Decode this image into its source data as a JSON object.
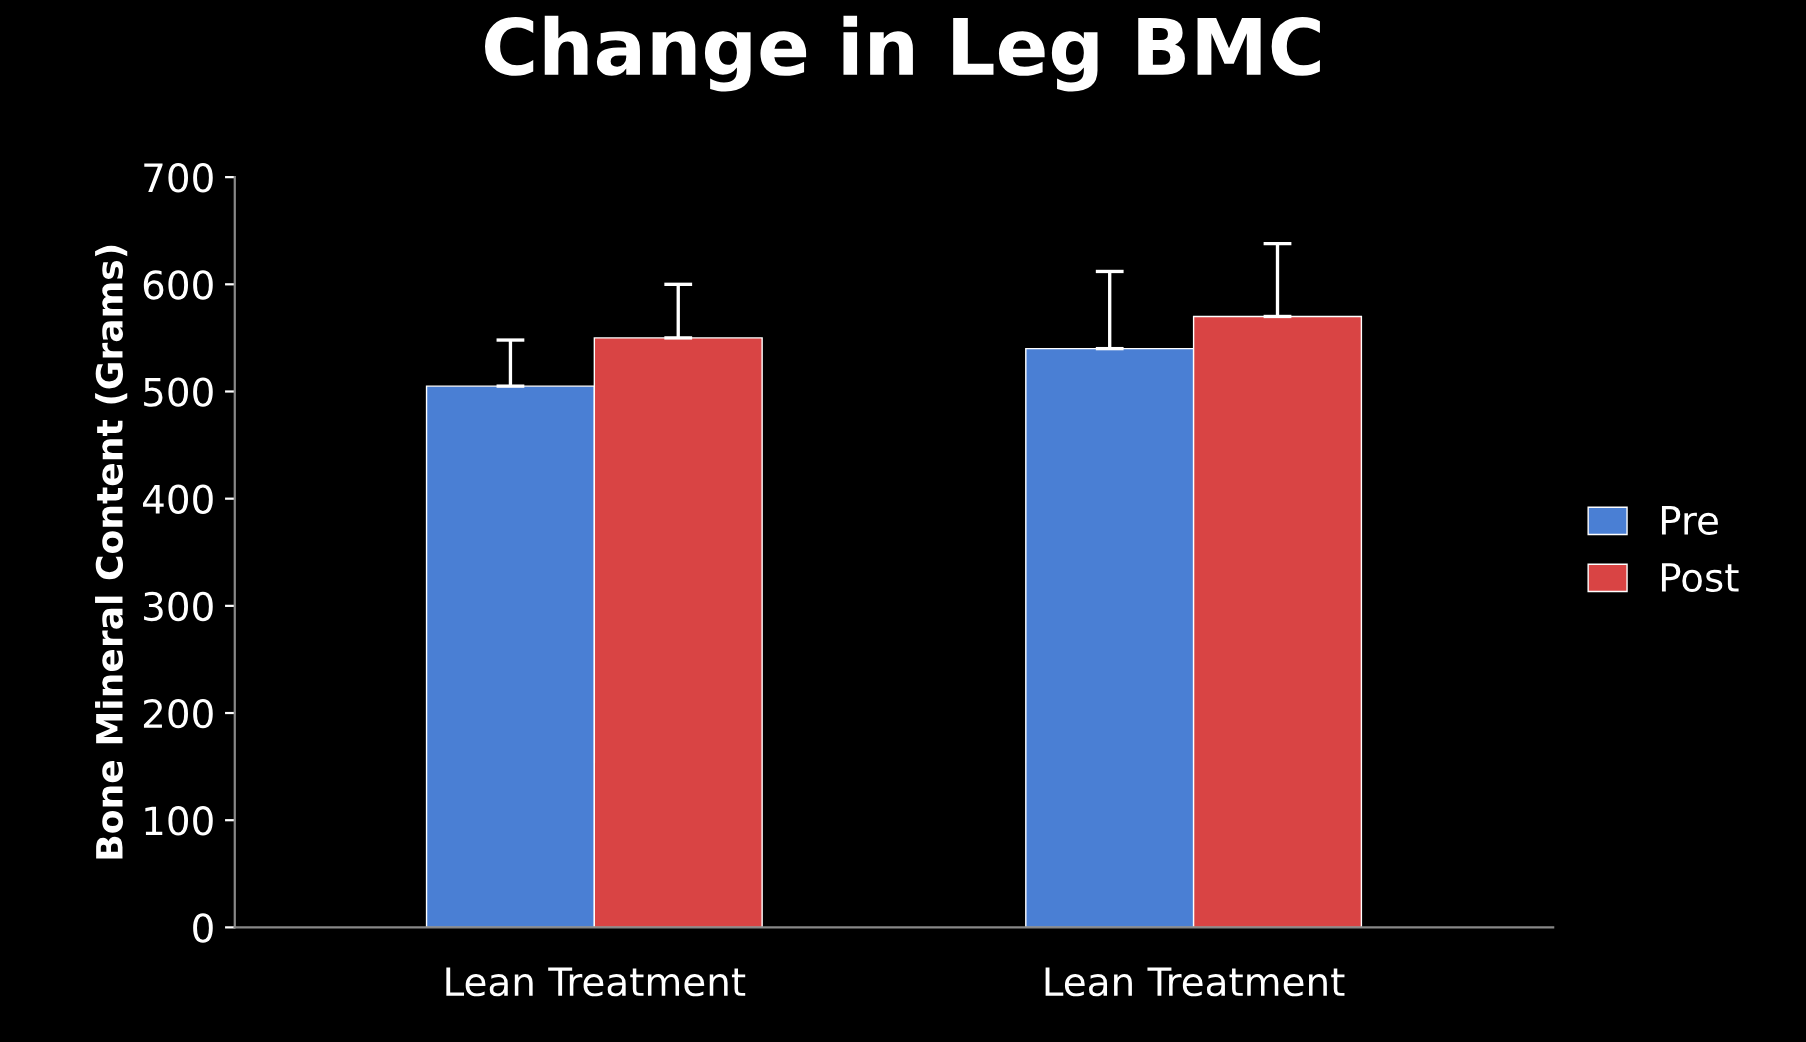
{
  "chart_data": {
    "type": "bar",
    "title": "Change in Leg BMC",
    "ylabel": "Bone Mineral Content (Grams)",
    "categories": [
      "Lean Treatment",
      "Lean Treatment"
    ],
    "series": [
      {
        "name": "Pre",
        "color": "#4a7fd4",
        "values": [
          505,
          540
        ],
        "errors": [
          [
            505,
            548
          ],
          [
            540,
            612
          ]
        ]
      },
      {
        "name": "Post",
        "color": "#d94444",
        "values": [
          550,
          570
        ],
        "errors": [
          [
            550,
            600
          ],
          [
            570,
            638
          ]
        ]
      }
    ],
    "ylim": [
      0,
      700
    ],
    "yticks": [
      0,
      100,
      200,
      300,
      400,
      500,
      600,
      700
    ],
    "grid": false,
    "legend": "right"
  }
}
